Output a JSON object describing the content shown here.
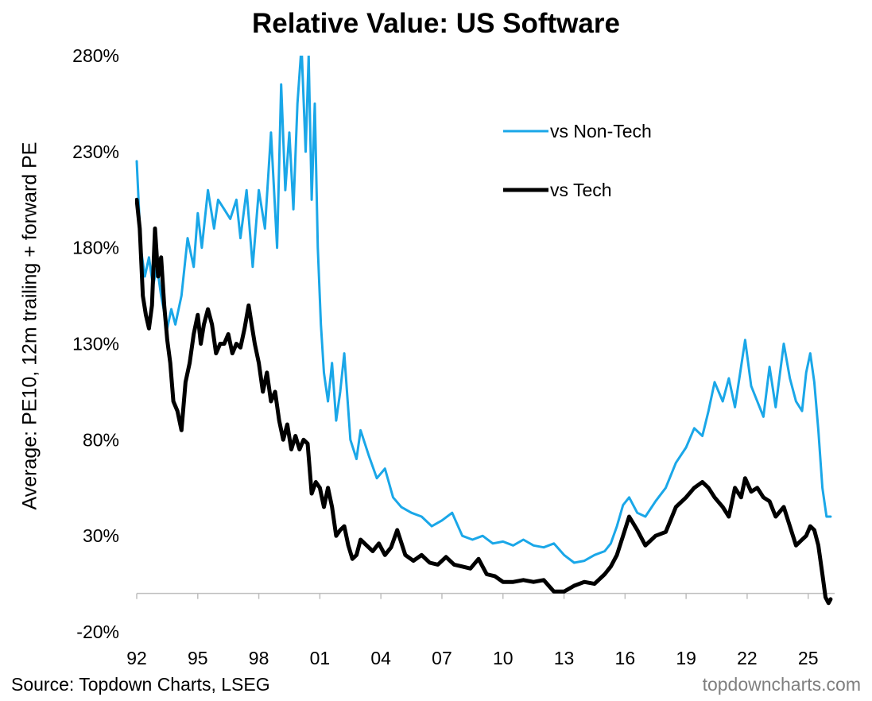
{
  "chart_data": {
    "type": "line",
    "title": "Relative Value: US Software",
    "ylabel": "Average: PE10, 12m trailing + forward PE",
    "xlabel": "",
    "source": "Source: Topdown Charts, LSEG",
    "watermark": "topdowncharts.com",
    "ylim": [
      -20,
      280
    ],
    "yticks": [
      -20,
      30,
      80,
      130,
      180,
      230,
      280
    ],
    "ytick_labels": [
      "-20%",
      "30%",
      "80%",
      "130%",
      "180%",
      "230%",
      "280%"
    ],
    "xlim": [
      1992,
      2026.3
    ],
    "xticks": [
      1992,
      1995,
      1998,
      2001,
      2004,
      2007,
      2010,
      2013,
      2016,
      2019,
      2022,
      2025
    ],
    "xtick_labels": [
      "92",
      "95",
      "98",
      "01",
      "04",
      "07",
      "10",
      "13",
      "16",
      "19",
      "22",
      "25"
    ],
    "legend_position": "top-right",
    "series": [
      {
        "name": "vs Non-Tech",
        "color": "#1aa7e8",
        "x": [
          1992.0,
          1992.2,
          1992.4,
          1992.6,
          1992.8,
          1993.0,
          1993.2,
          1993.5,
          1993.7,
          1993.9,
          1994.2,
          1994.5,
          1994.8,
          1995.0,
          1995.2,
          1995.5,
          1995.8,
          1996.0,
          1996.3,
          1996.6,
          1996.9,
          1997.1,
          1997.4,
          1997.7,
          1998.0,
          1998.3,
          1998.6,
          1998.9,
          1999.1,
          1999.3,
          1999.5,
          1999.7,
          1999.9,
          2000.1,
          2000.3,
          2000.45,
          2000.6,
          2000.75,
          2000.9,
          2001.05,
          2001.2,
          2001.4,
          2001.6,
          2001.8,
          2002.0,
          2002.2,
          2002.5,
          2002.8,
          2003.0,
          2003.4,
          2003.8,
          2004.2,
          2004.6,
          2005.0,
          2005.5,
          2006.0,
          2006.5,
          2007.0,
          2007.5,
          2008.0,
          2008.5,
          2009.0,
          2009.5,
          2010.0,
          2010.5,
          2011.0,
          2011.5,
          2012.0,
          2012.5,
          2013.0,
          2013.5,
          2014.0,
          2014.5,
          2015.0,
          2015.3,
          2015.6,
          2015.9,
          2016.2,
          2016.6,
          2017.0,
          2017.5,
          2018.0,
          2018.5,
          2019.0,
          2019.4,
          2019.8,
          2020.1,
          2020.4,
          2020.8,
          2021.1,
          2021.4,
          2021.7,
          2021.9,
          2022.2,
          2022.5,
          2022.8,
          2023.1,
          2023.4,
          2023.8,
          2024.1,
          2024.4,
          2024.7,
          2024.9,
          2025.1,
          2025.3,
          2025.5,
          2025.7,
          2025.9,
          2026.1
        ],
        "values": [
          225,
          180,
          165,
          175,
          160,
          170,
          155,
          138,
          148,
          140,
          155,
          185,
          170,
          198,
          180,
          210,
          190,
          205,
          200,
          195,
          205,
          185,
          210,
          170,
          210,
          190,
          240,
          180,
          265,
          210,
          240,
          200,
          255,
          285,
          230,
          280,
          205,
          255,
          180,
          140,
          115,
          100,
          120,
          90,
          105,
          125,
          80,
          70,
          85,
          72,
          60,
          65,
          50,
          45,
          42,
          40,
          35,
          38,
          42,
          30,
          28,
          30,
          26,
          27,
          25,
          28,
          25,
          24,
          26,
          20,
          16,
          17,
          20,
          22,
          26,
          35,
          46,
          50,
          42,
          40,
          48,
          55,
          68,
          76,
          86,
          82,
          95,
          110,
          100,
          112,
          97,
          118,
          132,
          108,
          100,
          92,
          118,
          97,
          130,
          112,
          100,
          95,
          115,
          125,
          110,
          85,
          55,
          40,
          40
        ]
      },
      {
        "name": "vs Tech",
        "color": "#000000",
        "x": [
          1992.0,
          1992.15,
          1992.3,
          1992.45,
          1992.6,
          1992.75,
          1992.9,
          1993.05,
          1993.2,
          1993.35,
          1993.5,
          1993.65,
          1993.8,
          1994.0,
          1994.2,
          1994.4,
          1994.6,
          1994.8,
          1995.0,
          1995.15,
          1995.3,
          1995.5,
          1995.7,
          1995.9,
          1996.1,
          1996.3,
          1996.5,
          1996.7,
          1996.9,
          1997.1,
          1997.3,
          1997.5,
          1997.65,
          1997.8,
          1998.0,
          1998.2,
          1998.4,
          1998.6,
          1998.8,
          1999.0,
          1999.2,
          1999.4,
          1999.6,
          1999.8,
          2000.0,
          2000.2,
          2000.4,
          2000.6,
          2000.8,
          2001.0,
          2001.2,
          2001.4,
          2001.6,
          2001.8,
          2002.0,
          2002.2,
          2002.4,
          2002.6,
          2002.8,
          2003.0,
          2003.3,
          2003.6,
          2003.9,
          2004.2,
          2004.5,
          2004.8,
          2005.2,
          2005.6,
          2006.0,
          2006.4,
          2006.8,
          2007.2,
          2007.6,
          2008.0,
          2008.4,
          2008.8,
          2009.2,
          2009.6,
          2010.0,
          2010.5,
          2011.0,
          2011.5,
          2012.0,
          2012.5,
          2013.0,
          2013.5,
          2014.0,
          2014.5,
          2015.0,
          2015.3,
          2015.6,
          2015.9,
          2016.2,
          2016.6,
          2017.0,
          2017.5,
          2018.0,
          2018.5,
          2019.0,
          2019.4,
          2019.8,
          2020.1,
          2020.4,
          2020.8,
          2021.1,
          2021.4,
          2021.7,
          2021.9,
          2022.2,
          2022.5,
          2022.8,
          2023.1,
          2023.4,
          2023.8,
          2024.1,
          2024.4,
          2024.7,
          2024.9,
          2025.1,
          2025.3,
          2025.5,
          2025.7,
          2025.85,
          2026.0,
          2026.1
        ],
        "values": [
          205,
          190,
          155,
          145,
          138,
          150,
          190,
          165,
          175,
          150,
          132,
          120,
          100,
          95,
          85,
          110,
          120,
          135,
          145,
          130,
          140,
          148,
          140,
          125,
          130,
          130,
          135,
          125,
          130,
          128,
          138,
          150,
          140,
          130,
          120,
          105,
          115,
          100,
          105,
          90,
          80,
          88,
          75,
          82,
          75,
          80,
          78,
          52,
          58,
          55,
          45,
          55,
          45,
          30,
          33,
          35,
          25,
          18,
          20,
          28,
          25,
          22,
          26,
          20,
          24,
          33,
          20,
          17,
          20,
          16,
          15,
          19,
          15,
          14,
          13,
          18,
          10,
          9,
          6,
          6,
          7,
          6,
          7,
          1,
          1,
          4,
          6,
          5,
          10,
          14,
          20,
          30,
          40,
          33,
          25,
          30,
          32,
          45,
          50,
          55,
          58,
          55,
          50,
          45,
          40,
          55,
          50,
          60,
          53,
          55,
          50,
          48,
          40,
          45,
          35,
          25,
          28,
          30,
          35,
          33,
          25,
          10,
          -2,
          -5,
          -3
        ]
      }
    ]
  }
}
